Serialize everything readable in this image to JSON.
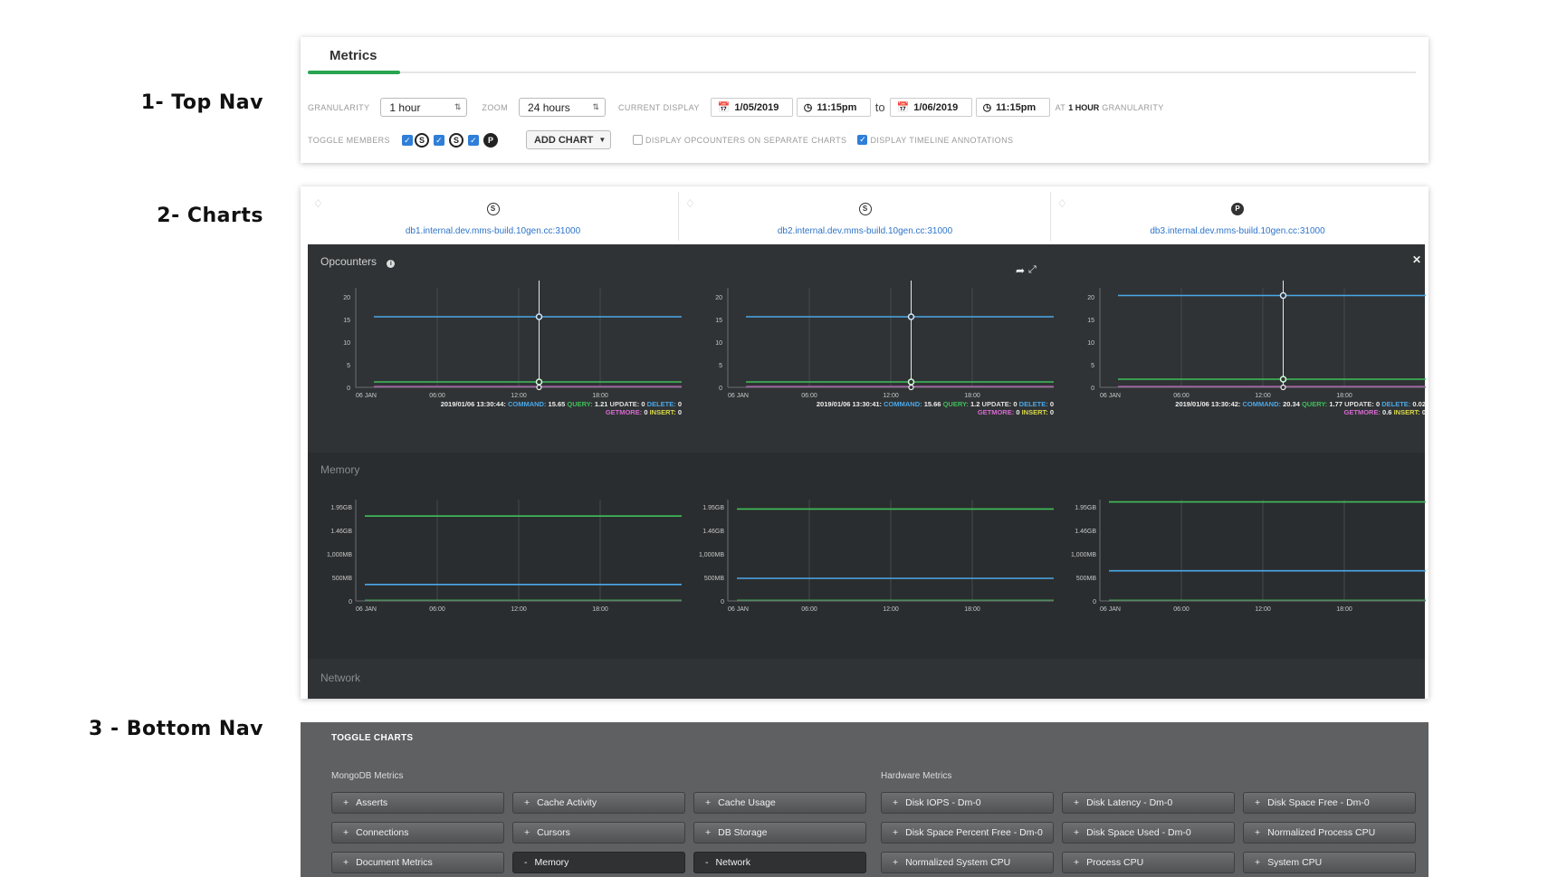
{
  "side_labels": {
    "top_nav": "1- Top Nav",
    "charts": "2- Charts",
    "bottom_nav": "3 - Bottom Nav"
  },
  "top_nav": {
    "tab": "Metrics",
    "granularity_label": "GRANULARITY",
    "granularity_value": "1 hour",
    "zoom_label": "ZOOM",
    "zoom_value": "24 hours",
    "current_display_label": "CURRENT DISPLAY",
    "from_date": "1/05/2019",
    "from_time": "11:15pm",
    "to_word": "to",
    "to_date": "1/06/2019",
    "to_time": "11:15pm",
    "at_word": "AT",
    "at_value": "1 HOUR",
    "at_suffix": "GRANULARITY",
    "toggle_members_label": "TOGGLE MEMBERS",
    "members": [
      {
        "letter": "S",
        "checked": true,
        "filled": false
      },
      {
        "letter": "S",
        "checked": true,
        "filled": false
      },
      {
        "letter": "P",
        "checked": true,
        "filled": true
      }
    ],
    "add_chart": "ADD CHART",
    "opt_separate": "DISPLAY OPCOUNTERS ON SEPARATE CHARTS",
    "opt_separate_checked": false,
    "opt_timeline": "DISPLAY TIMELINE ANNOTATIONS",
    "opt_timeline_checked": true
  },
  "charts": {
    "hosts": [
      {
        "name": "db1.internal.dev.mms-build.10gen.cc:31000",
        "role": "S"
      },
      {
        "name": "db2.internal.dev.mms-build.10gen.cc:31000",
        "role": "S"
      },
      {
        "name": "db3.internal.dev.mms-build.10gen.cc:31000",
        "role": "P"
      }
    ],
    "sections": {
      "opcounters": "Opcounters",
      "memory": "Memory",
      "network": "Network"
    },
    "x_ticks": [
      "06 JAN",
      "06:00",
      "12:00",
      "18:00"
    ],
    "colors": {
      "command": "#4aa8e8",
      "query": "#3fbf5a",
      "getmore": "#d66ad0",
      "insert": "#d8d84a",
      "grid": "#45494c",
      "axis_text": "#c8c8c8"
    },
    "opcounters": {
      "y_ticks": [
        "20",
        "15",
        "10",
        "5",
        "0"
      ],
      "ylim": [
        0,
        22
      ],
      "charts": [
        {
          "timestamp": "2019/01/06 13:30:44:",
          "command": "15.65",
          "query": "1.21",
          "update": "0",
          "delete": "0",
          "getmore": "0",
          "insert": "0",
          "command_level": 15.6,
          "query_level": 1.2,
          "cursor_hour": 13.5
        },
        {
          "timestamp": "2019/01/06 13:30:41:",
          "command": "15.66",
          "query": "1.2",
          "update": "0",
          "delete": "0",
          "getmore": "0",
          "insert": "0",
          "command_level": 15.6,
          "query_level": 1.2,
          "cursor_hour": 13.5
        },
        {
          "timestamp": "2019/01/06 13:30:42:",
          "command": "20.34",
          "query": "1.77",
          "update": "0",
          "delete": "0.02",
          "getmore": "0.6",
          "insert": "0",
          "command_level": 20.3,
          "query_level": 1.8,
          "cursor_hour": 13.5
        }
      ]
    },
    "memory": {
      "y_ticks": [
        "1.95GB",
        "1.46GB",
        "1,000MB",
        "500MB",
        "0"
      ],
      "y_tick_values_mb": [
        2000,
        1500,
        1000,
        500,
        0
      ],
      "ylim_mb": [
        0,
        2150
      ],
      "charts": [
        {
          "green_mb": 1800,
          "blue_mb": 350
        },
        {
          "green_mb": 1950,
          "blue_mb": 480
        },
        {
          "green_mb": 2100,
          "blue_mb": 640
        }
      ]
    }
  },
  "bottom_nav": {
    "title": "TOGGLE CHARTS",
    "mongodb_label": "MongoDB Metrics",
    "hardware_label": "Hardware Metrics",
    "mongodb_items": [
      {
        "label": "Asserts",
        "on": false
      },
      {
        "label": "Cache Activity",
        "on": false
      },
      {
        "label": "Cache Usage",
        "on": false
      },
      {
        "label": "Connections",
        "on": false
      },
      {
        "label": "Cursors",
        "on": false
      },
      {
        "label": "DB Storage",
        "on": false
      },
      {
        "label": "Document Metrics",
        "on": false
      },
      {
        "label": "Memory",
        "on": true
      },
      {
        "label": "Network",
        "on": true
      }
    ],
    "hardware_items": [
      {
        "label": "Disk IOPS - Dm-0",
        "on": false
      },
      {
        "label": "Disk Latency - Dm-0",
        "on": false
      },
      {
        "label": "Disk Space Free - Dm-0",
        "on": false
      },
      {
        "label": "Disk Space Percent Free - Dm-0",
        "on": false
      },
      {
        "label": "Disk Space Used - Dm-0",
        "on": false
      },
      {
        "label": "Normalized Process CPU",
        "on": false
      },
      {
        "label": "Normalized System CPU",
        "on": false
      },
      {
        "label": "Process CPU",
        "on": false
      },
      {
        "label": "System CPU",
        "on": false
      }
    ]
  }
}
